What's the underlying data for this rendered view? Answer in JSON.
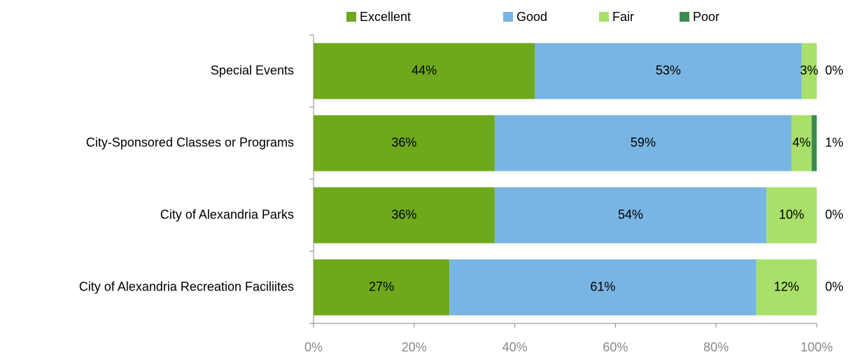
{
  "chart_data": {
    "type": "stacked-barh",
    "categories": [
      "Special Events",
      "City-Sponsored Classes or Programs",
      "City of Alexandria Parks",
      "City of Alexandria Recreation Faciliites"
    ],
    "series": [
      {
        "name": "Excellent",
        "color": "#6fa81d",
        "values": [
          44,
          36,
          36,
          27
        ],
        "value_labels": [
          "44%",
          "36%",
          "36%",
          "27%"
        ]
      },
      {
        "name": "Good",
        "color": "#79b5e3",
        "values": [
          53,
          59,
          54,
          61
        ],
        "value_labels": [
          "53%",
          "59%",
          "54%",
          "61%"
        ]
      },
      {
        "name": "Fair",
        "color": "#a8e06a",
        "values": [
          3,
          4,
          10,
          12
        ],
        "value_labels": [
          "3%",
          "4%",
          "10%",
          "12%"
        ]
      },
      {
        "name": "Poor",
        "color": "#3b8a50",
        "values": [
          0,
          1,
          0,
          0
        ],
        "value_labels": [
          "0%",
          "1%",
          "0%",
          "0%"
        ]
      }
    ],
    "xlim": [
      0,
      100
    ],
    "xticks": [
      {
        "value": 0,
        "label": "0%"
      },
      {
        "value": 20,
        "label": "20%"
      },
      {
        "value": 40,
        "label": "40%"
      },
      {
        "value": 60,
        "label": "60%"
      },
      {
        "value": 80,
        "label": "80%"
      },
      {
        "value": 100,
        "label": "100%"
      }
    ],
    "legend": "top"
  }
}
